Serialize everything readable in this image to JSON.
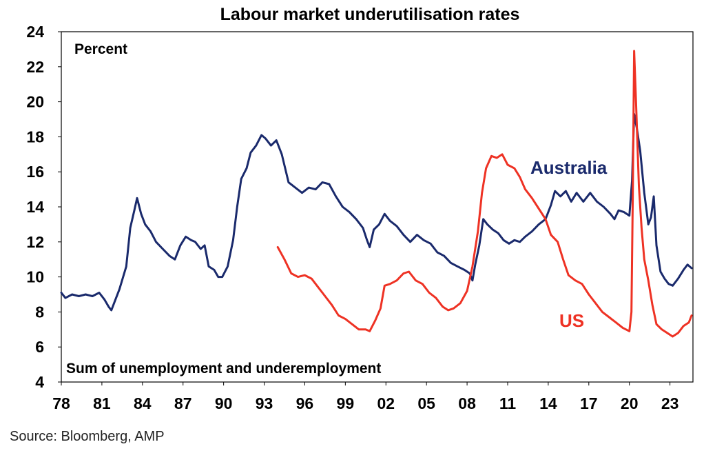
{
  "chart_data": {
    "type": "line",
    "title": "Labour market underutilisation rates",
    "ylabel_note": "Percent",
    "subtitle_note": "Sum of unemployment and underemployment",
    "ylim": [
      4,
      24
    ],
    "yticks": [
      4,
      6,
      8,
      10,
      12,
      14,
      16,
      18,
      20,
      22,
      24
    ],
    "xlim": [
      1978,
      2024.7
    ],
    "xticks": [
      {
        "label": "78",
        "year": 1978
      },
      {
        "label": "81",
        "year": 1981
      },
      {
        "label": "84",
        "year": 1984
      },
      {
        "label": "87",
        "year": 1987
      },
      {
        "label": "90",
        "year": 1990
      },
      {
        "label": "93",
        "year": 1993
      },
      {
        "label": "96",
        "year": 1996
      },
      {
        "label": "99",
        "year": 1999
      },
      {
        "label": "02",
        "year": 2002
      },
      {
        "label": "05",
        "year": 2005
      },
      {
        "label": "08",
        "year": 2008
      },
      {
        "label": "11",
        "year": 2011
      },
      {
        "label": "14",
        "year": 2014
      },
      {
        "label": "17",
        "year": 2017
      },
      {
        "label": "20",
        "year": 2020
      },
      {
        "label": "23",
        "year": 2023
      }
    ],
    "series": [
      {
        "name": "Australia",
        "color": "#1a2a6c",
        "points": [
          [
            1978.0,
            9.1
          ],
          [
            1978.3,
            8.8
          ],
          [
            1978.8,
            9.0
          ],
          [
            1979.3,
            8.9
          ],
          [
            1979.8,
            9.0
          ],
          [
            1980.3,
            8.9
          ],
          [
            1980.8,
            9.1
          ],
          [
            1981.2,
            8.7
          ],
          [
            1981.5,
            8.3
          ],
          [
            1981.7,
            8.1
          ],
          [
            1981.9,
            8.5
          ],
          [
            1982.3,
            9.3
          ],
          [
            1982.8,
            10.6
          ],
          [
            1983.1,
            12.8
          ],
          [
            1983.4,
            13.8
          ],
          [
            1983.6,
            14.5
          ],
          [
            1983.9,
            13.6
          ],
          [
            1984.2,
            13.0
          ],
          [
            1984.6,
            12.6
          ],
          [
            1985.0,
            12.0
          ],
          [
            1985.5,
            11.6
          ],
          [
            1986.0,
            11.2
          ],
          [
            1986.4,
            11.0
          ],
          [
            1986.8,
            11.8
          ],
          [
            1987.2,
            12.3
          ],
          [
            1987.6,
            12.1
          ],
          [
            1987.9,
            12.0
          ],
          [
            1988.3,
            11.6
          ],
          [
            1988.6,
            11.8
          ],
          [
            1988.9,
            10.6
          ],
          [
            1989.3,
            10.4
          ],
          [
            1989.6,
            10.0
          ],
          [
            1989.9,
            10.0
          ],
          [
            1990.3,
            10.6
          ],
          [
            1990.7,
            12.1
          ],
          [
            1991.0,
            14.0
          ],
          [
            1991.3,
            15.6
          ],
          [
            1991.7,
            16.2
          ],
          [
            1992.0,
            17.1
          ],
          [
            1992.4,
            17.5
          ],
          [
            1992.8,
            18.1
          ],
          [
            1993.1,
            17.9
          ],
          [
            1993.5,
            17.5
          ],
          [
            1993.9,
            17.8
          ],
          [
            1994.3,
            17.0
          ],
          [
            1994.8,
            15.4
          ],
          [
            1995.3,
            15.1
          ],
          [
            1995.8,
            14.8
          ],
          [
            1996.3,
            15.1
          ],
          [
            1996.8,
            15.0
          ],
          [
            1997.3,
            15.4
          ],
          [
            1997.8,
            15.3
          ],
          [
            1998.3,
            14.6
          ],
          [
            1998.8,
            14.0
          ],
          [
            1999.3,
            13.7
          ],
          [
            1999.8,
            13.3
          ],
          [
            2000.3,
            12.8
          ],
          [
            2000.6,
            12.1
          ],
          [
            2000.8,
            11.7
          ],
          [
            2001.1,
            12.7
          ],
          [
            2001.5,
            13.0
          ],
          [
            2001.9,
            13.6
          ],
          [
            2002.3,
            13.2
          ],
          [
            2002.8,
            12.9
          ],
          [
            2003.3,
            12.4
          ],
          [
            2003.8,
            12.0
          ],
          [
            2004.3,
            12.4
          ],
          [
            2004.8,
            12.1
          ],
          [
            2005.3,
            11.9
          ],
          [
            2005.8,
            11.4
          ],
          [
            2006.3,
            11.2
          ],
          [
            2006.8,
            10.8
          ],
          [
            2007.3,
            10.6
          ],
          [
            2007.8,
            10.4
          ],
          [
            2008.2,
            10.2
          ],
          [
            2008.4,
            9.8
          ],
          [
            2008.6,
            10.7
          ],
          [
            2008.9,
            11.8
          ],
          [
            2009.2,
            13.3
          ],
          [
            2009.5,
            13.0
          ],
          [
            2009.9,
            12.7
          ],
          [
            2010.3,
            12.5
          ],
          [
            2010.7,
            12.1
          ],
          [
            2011.1,
            11.9
          ],
          [
            2011.5,
            12.1
          ],
          [
            2011.9,
            12.0
          ],
          [
            2012.3,
            12.3
          ],
          [
            2012.8,
            12.6
          ],
          [
            2013.3,
            13.0
          ],
          [
            2013.8,
            13.3
          ],
          [
            2014.2,
            14.1
          ],
          [
            2014.5,
            14.9
          ],
          [
            2014.9,
            14.6
          ],
          [
            2015.3,
            14.9
          ],
          [
            2015.7,
            14.3
          ],
          [
            2016.1,
            14.8
          ],
          [
            2016.6,
            14.3
          ],
          [
            2017.1,
            14.8
          ],
          [
            2017.6,
            14.3
          ],
          [
            2018.1,
            14.0
          ],
          [
            2018.6,
            13.6
          ],
          [
            2018.9,
            13.3
          ],
          [
            2019.2,
            13.8
          ],
          [
            2019.6,
            13.7
          ],
          [
            2020.0,
            13.5
          ],
          [
            2020.2,
            15.5
          ],
          [
            2020.35,
            19.3
          ],
          [
            2020.55,
            18.5
          ],
          [
            2020.8,
            17.2
          ],
          [
            2021.1,
            14.8
          ],
          [
            2021.4,
            13.0
          ],
          [
            2021.6,
            13.4
          ],
          [
            2021.8,
            14.6
          ],
          [
            2022.0,
            11.8
          ],
          [
            2022.3,
            10.3
          ],
          [
            2022.6,
            9.9
          ],
          [
            2022.9,
            9.6
          ],
          [
            2023.2,
            9.5
          ],
          [
            2023.6,
            9.9
          ],
          [
            2024.0,
            10.4
          ],
          [
            2024.3,
            10.7
          ],
          [
            2024.6,
            10.5
          ]
        ]
      },
      {
        "name": "US",
        "color": "#ee3224",
        "points": [
          [
            1994.0,
            11.7
          ],
          [
            1994.5,
            11.0
          ],
          [
            1995.0,
            10.2
          ],
          [
            1995.5,
            10.0
          ],
          [
            1996.0,
            10.1
          ],
          [
            1996.5,
            9.9
          ],
          [
            1997.0,
            9.4
          ],
          [
            1997.5,
            8.9
          ],
          [
            1998.0,
            8.4
          ],
          [
            1998.5,
            7.8
          ],
          [
            1999.0,
            7.6
          ],
          [
            1999.5,
            7.3
          ],
          [
            2000.0,
            7.0
          ],
          [
            2000.5,
            7.0
          ],
          [
            2000.8,
            6.9
          ],
          [
            2001.2,
            7.5
          ],
          [
            2001.6,
            8.2
          ],
          [
            2001.9,
            9.5
          ],
          [
            2002.3,
            9.6
          ],
          [
            2002.8,
            9.8
          ],
          [
            2003.3,
            10.2
          ],
          [
            2003.7,
            10.3
          ],
          [
            2004.2,
            9.8
          ],
          [
            2004.7,
            9.6
          ],
          [
            2005.2,
            9.1
          ],
          [
            2005.7,
            8.8
          ],
          [
            2006.2,
            8.3
          ],
          [
            2006.6,
            8.1
          ],
          [
            2007.0,
            8.2
          ],
          [
            2007.5,
            8.5
          ],
          [
            2008.0,
            9.2
          ],
          [
            2008.4,
            10.6
          ],
          [
            2008.8,
            12.6
          ],
          [
            2009.1,
            14.8
          ],
          [
            2009.4,
            16.2
          ],
          [
            2009.8,
            16.9
          ],
          [
            2010.2,
            16.8
          ],
          [
            2010.6,
            17.0
          ],
          [
            2011.0,
            16.4
          ],
          [
            2011.5,
            16.2
          ],
          [
            2011.9,
            15.7
          ],
          [
            2012.3,
            15.0
          ],
          [
            2012.8,
            14.5
          ],
          [
            2013.3,
            13.9
          ],
          [
            2013.8,
            13.3
          ],
          [
            2014.2,
            12.4
          ],
          [
            2014.7,
            12.0
          ],
          [
            2015.1,
            11.0
          ],
          [
            2015.5,
            10.1
          ],
          [
            2016.0,
            9.8
          ],
          [
            2016.5,
            9.6
          ],
          [
            2017.0,
            9.0
          ],
          [
            2017.5,
            8.5
          ],
          [
            2018.0,
            8.0
          ],
          [
            2018.5,
            7.7
          ],
          [
            2019.0,
            7.4
          ],
          [
            2019.5,
            7.1
          ],
          [
            2020.0,
            6.9
          ],
          [
            2020.15,
            8.0
          ],
          [
            2020.25,
            14.5
          ],
          [
            2020.35,
            22.9
          ],
          [
            2020.5,
            19.8
          ],
          [
            2020.7,
            15.2
          ],
          [
            2020.9,
            12.8
          ],
          [
            2021.1,
            11.0
          ],
          [
            2021.4,
            9.8
          ],
          [
            2021.7,
            8.4
          ],
          [
            2022.0,
            7.3
          ],
          [
            2022.4,
            7.0
          ],
          [
            2022.8,
            6.8
          ],
          [
            2023.2,
            6.6
          ],
          [
            2023.6,
            6.8
          ],
          [
            2024.0,
            7.2
          ],
          [
            2024.4,
            7.4
          ],
          [
            2024.6,
            7.8
          ]
        ]
      }
    ]
  },
  "source": "Source: Bloomberg, AMP"
}
